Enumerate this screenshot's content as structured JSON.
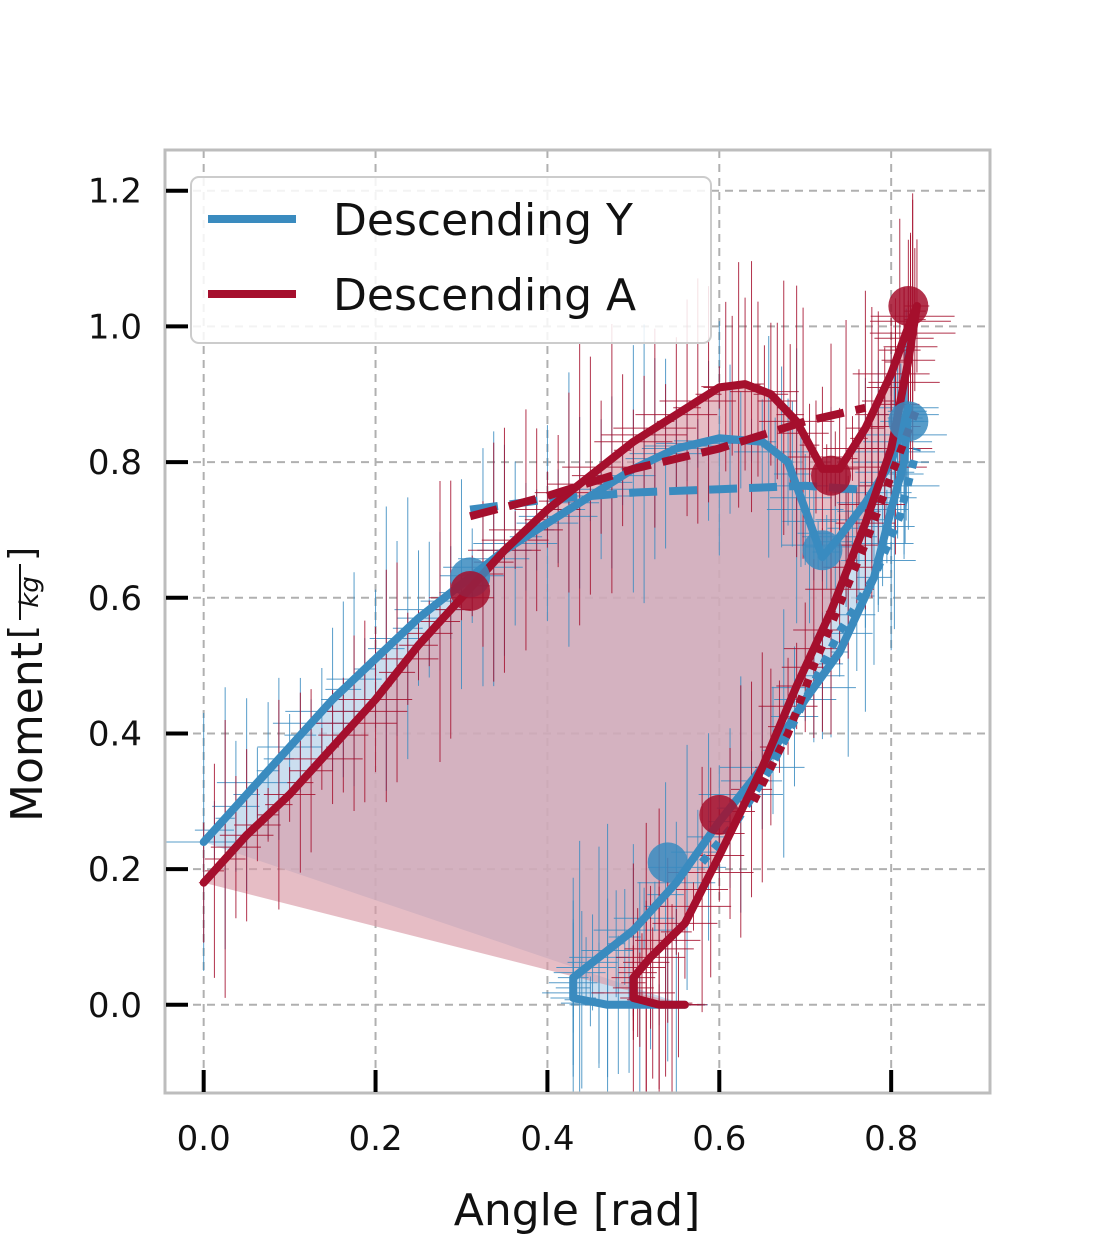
{
  "chart_data": {
    "type": "line",
    "xlabel": "Angle [rad]",
    "ylabel": "Moment",
    "ylabel_unit": "kg",
    "xlim": [
      -0.045,
      0.915
    ],
    "ylim": [
      -0.13,
      1.26
    ],
    "xticks": [
      0.0,
      0.2,
      0.4,
      0.6,
      0.8
    ],
    "xtick_labels": [
      "0.0",
      "0.2",
      "0.4",
      "0.6",
      "0.8"
    ],
    "yticks": [
      0.0,
      0.2,
      0.4,
      0.6,
      0.8,
      1.0,
      1.2
    ],
    "ytick_labels": [
      "0.0",
      "0.2",
      "0.4",
      "0.6",
      "0.8",
      "1.0",
      "1.2"
    ],
    "grid": true,
    "legend_position": "top-left",
    "series": [
      {
        "name": "Descending Y",
        "color": "#3a8bbf",
        "fill_color": "#b9d3ea",
        "main": [
          [
            0.0,
            0.24
          ],
          [
            0.05,
            0.31
          ],
          [
            0.1,
            0.38
          ],
          [
            0.15,
            0.45
          ],
          [
            0.2,
            0.51
          ],
          [
            0.25,
            0.57
          ],
          [
            0.3,
            0.62
          ],
          [
            0.35,
            0.67
          ],
          [
            0.4,
            0.71
          ],
          [
            0.45,
            0.75
          ],
          [
            0.5,
            0.79
          ],
          [
            0.55,
            0.82
          ],
          [
            0.6,
            0.835
          ],
          [
            0.65,
            0.83
          ],
          [
            0.68,
            0.8
          ],
          [
            0.7,
            0.73
          ],
          [
            0.72,
            0.66
          ],
          [
            0.74,
            0.69
          ],
          [
            0.77,
            0.74
          ],
          [
            0.8,
            0.8
          ],
          [
            0.815,
            0.86
          ],
          [
            0.82,
            0.88
          ],
          [
            0.815,
            0.8
          ],
          [
            0.8,
            0.73
          ],
          [
            0.78,
            0.63
          ],
          [
            0.74,
            0.52
          ],
          [
            0.7,
            0.45
          ],
          [
            0.65,
            0.35
          ],
          [
            0.6,
            0.27
          ],
          [
            0.55,
            0.18
          ],
          [
            0.5,
            0.11
          ],
          [
            0.46,
            0.07
          ],
          [
            0.43,
            0.04
          ],
          [
            0.43,
            0.01
          ],
          [
            0.47,
            0.0
          ],
          [
            0.52,
            0.0
          ],
          [
            0.56,
            0.0
          ]
        ],
        "dashed": [
          [
            0.31,
            0.73
          ],
          [
            0.4,
            0.745
          ],
          [
            0.5,
            0.755
          ],
          [
            0.6,
            0.76
          ],
          [
            0.7,
            0.765
          ],
          [
            0.76,
            0.76
          ]
        ],
        "dotted": [
          [
            0.58,
            0.21
          ],
          [
            0.62,
            0.27
          ],
          [
            0.66,
            0.35
          ],
          [
            0.7,
            0.45
          ],
          [
            0.74,
            0.55
          ],
          [
            0.78,
            0.63
          ],
          [
            0.81,
            0.72
          ],
          [
            0.83,
            0.82
          ]
        ],
        "markers": [
          [
            0.31,
            0.63
          ],
          [
            0.72,
            0.67
          ],
          [
            0.54,
            0.21
          ],
          [
            0.82,
            0.86
          ]
        ]
      },
      {
        "name": "Descending A",
        "color": "#a50f2d",
        "fill_color": "#d99aa6",
        "main": [
          [
            0.0,
            0.18
          ],
          [
            0.05,
            0.25
          ],
          [
            0.1,
            0.31
          ],
          [
            0.15,
            0.38
          ],
          [
            0.2,
            0.45
          ],
          [
            0.25,
            0.53
          ],
          [
            0.3,
            0.6
          ],
          [
            0.35,
            0.67
          ],
          [
            0.4,
            0.73
          ],
          [
            0.45,
            0.78
          ],
          [
            0.5,
            0.83
          ],
          [
            0.55,
            0.87
          ],
          [
            0.6,
            0.91
          ],
          [
            0.63,
            0.915
          ],
          [
            0.66,
            0.9
          ],
          [
            0.69,
            0.86
          ],
          [
            0.72,
            0.79
          ],
          [
            0.74,
            0.79
          ],
          [
            0.77,
            0.85
          ],
          [
            0.8,
            0.93
          ],
          [
            0.82,
            1.0
          ],
          [
            0.83,
            1.03
          ],
          [
            0.82,
            0.95
          ],
          [
            0.8,
            0.82
          ],
          [
            0.77,
            0.71
          ],
          [
            0.73,
            0.58
          ],
          [
            0.69,
            0.47
          ],
          [
            0.65,
            0.35
          ],
          [
            0.6,
            0.22
          ],
          [
            0.56,
            0.12
          ],
          [
            0.52,
            0.07
          ],
          [
            0.5,
            0.04
          ],
          [
            0.5,
            0.01
          ],
          [
            0.53,
            0.0
          ],
          [
            0.56,
            0.0
          ]
        ],
        "dashed": [
          [
            0.31,
            0.72
          ],
          [
            0.4,
            0.75
          ],
          [
            0.5,
            0.79
          ],
          [
            0.6,
            0.82
          ],
          [
            0.7,
            0.86
          ],
          [
            0.77,
            0.88
          ]
        ],
        "dotted": [
          [
            0.64,
            0.3
          ],
          [
            0.68,
            0.4
          ],
          [
            0.71,
            0.5
          ],
          [
            0.74,
            0.59
          ],
          [
            0.77,
            0.68
          ],
          [
            0.8,
            0.78
          ],
          [
            0.83,
            0.88
          ]
        ],
        "markers": [
          [
            0.31,
            0.61
          ],
          [
            0.73,
            0.78
          ],
          [
            0.6,
            0.28
          ],
          [
            0.82,
            1.03
          ]
        ]
      }
    ]
  }
}
